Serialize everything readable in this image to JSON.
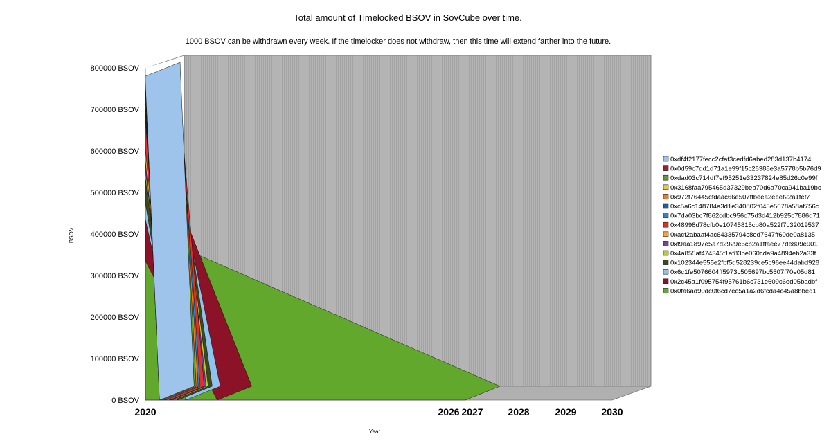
{
  "chart_data": {
    "type": "area",
    "title": "Total amount of Timelocked BSOV in SovCube over time.",
    "subtitle": "1000 BSOV can be withdrawn every week. If the timelocker does not withdraw, then this time will extend farther into the future.",
    "ylabel": "BSOV",
    "xlabel": "Year",
    "ylim": [
      0,
      800000
    ],
    "y_ticks": [
      "0 BSOV",
      "100000 BSOV",
      "200000 BSOV",
      "300000 BSOV",
      "400000 BSOV",
      "500000 BSOV",
      "600000 BSOV",
      "700000 BSOV",
      "800000 BSOV"
    ],
    "y_tick_values": [
      0,
      100000,
      200000,
      300000,
      400000,
      500000,
      600000,
      700000,
      800000
    ],
    "x_ticks": [
      "2020",
      "2026",
      "2027",
      "2028",
      "2029",
      "2030"
    ],
    "x_tick_years": [
      2020,
      2026,
      2027,
      2028,
      2029,
      2030
    ],
    "xlim": [
      2020,
      2030
    ],
    "legend_position": "right",
    "grid": false,
    "colors": {
      "back_wall": "#a4a4a4",
      "back_wall_lines": "#bdbdbd",
      "floor": "#b0b0b0",
      "band_stripe": "#111111"
    },
    "series": [
      {
        "name": "0xdf4f2177fecc2cfaf3cedfd6abed283d137b4174",
        "color": "#9ec4ec",
        "value_2020": 15000,
        "end_year": 2020.35
      },
      {
        "name": "0x0d59c7dd1d71a1e99f15c26388e3a5778b5b76d9",
        "color": "#a51c30",
        "value_2020": 15000,
        "end_year": 2020.35
      },
      {
        "name": "0xdad03c714df7ef95251e33237824e85d26c0e99f",
        "color": "#5f9b2c",
        "value_2020": 15000,
        "end_year": 2020.4
      },
      {
        "name": "0x3168faa795465d37329beb70d6a70ca941ba19bc",
        "color": "#f5c531",
        "value_2020": 15000,
        "end_year": 2020.4
      },
      {
        "name": "0x972f76445cfdaac66e507ffbeea2eeef22a1fef7",
        "color": "#f07b1f",
        "value_2020": 15000,
        "end_year": 2020.45
      },
      {
        "name": "0xc5a6c148784a3d1e340802f045e5678a58af756c",
        "color": "#165fa3",
        "value_2020": 15000,
        "end_year": 2020.45
      },
      {
        "name": "0x7da03bc7f862cdbc956c75d3d412b925c7886d71",
        "color": "#2a86c8",
        "value_2020": 15000,
        "end_year": 2020.5
      },
      {
        "name": "0x48998d78cfb0e10745815cb80a522f7c32019537",
        "color": "#e42d24",
        "value_2020": 70000,
        "end_year": 2020.6
      },
      {
        "name": "0xacf2abaaf4ac64335794c8ed7647ff60de0a8135",
        "color": "#f2a53a",
        "value_2020": 30000,
        "end_year": 2020.6
      },
      {
        "name": "0xf9aa1897e5a7d2929e5cb2a1ffaee77de809e901",
        "color": "#7a3fa2",
        "value_2020": 20000,
        "end_year": 2020.65
      },
      {
        "name": "0x4a855af474345f1af83be060cda9a4894eb2a33f",
        "color": "#b4cc37",
        "value_2020": 20000,
        "end_year": 2020.7
      },
      {
        "name": "0x102344e555e2fbf5d528239ce5c96ee44dabd928",
        "color": "#3b4a1c",
        "value_2020": 60000,
        "end_year": 2020.8
      },
      {
        "name": "0x6c1fe5076604ff5973c505697bc5507f70e05d81",
        "color": "#8fc3ee",
        "value_2020": 40000,
        "end_year": 2021.0
      },
      {
        "name": "0x2c45a1f095754f95761b6c731e609c6ed05badbf",
        "color": "#8c1228",
        "value_2020": 100000,
        "end_year": 2021.6
      },
      {
        "name": "0x0fa6ad90dc0f6cd7ec5a1a2d6fcda4c45a8bbed1",
        "color": "#62a82d",
        "value_2020": 335000,
        "end_year": 2026.7
      }
    ]
  }
}
